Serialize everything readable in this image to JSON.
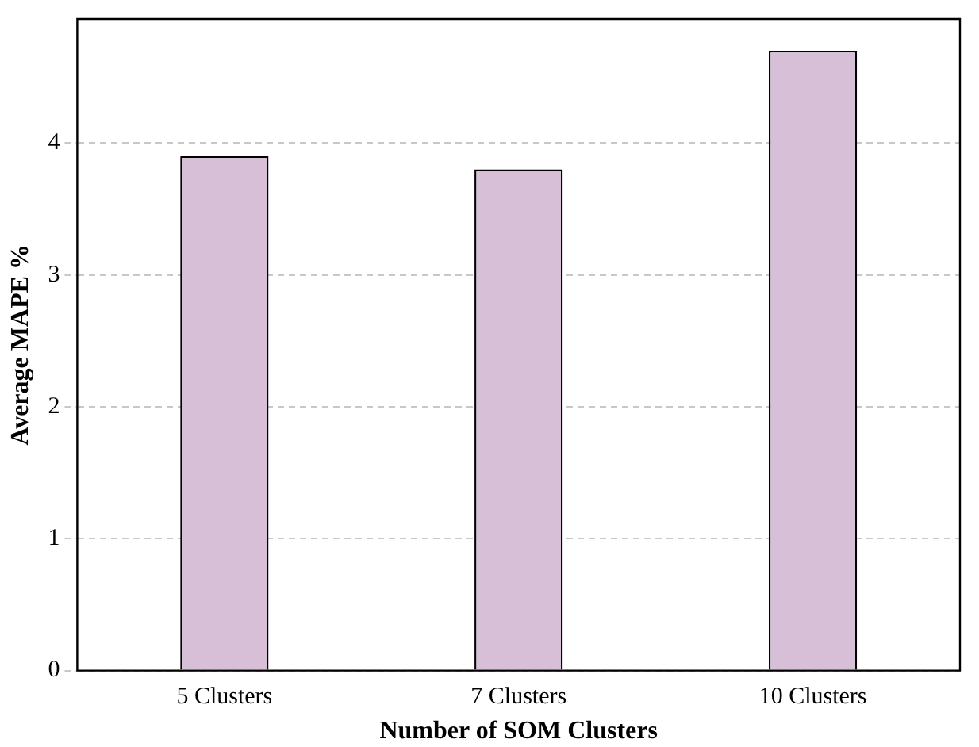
{
  "chart_data": {
    "type": "bar",
    "xlabel": "Number of SOM Clusters",
    "ylabel": "Average MAPE %",
    "categories": [
      "5 Clusters",
      "7 Clusters",
      "10 Clusters"
    ],
    "values": [
      3.9,
      3.8,
      4.7
    ],
    "color": "#d8bfd8",
    "ylim": [
      0,
      4.94
    ],
    "yticks": [
      0,
      1,
      2,
      3,
      4
    ],
    "grid": "y",
    "legend": false
  }
}
